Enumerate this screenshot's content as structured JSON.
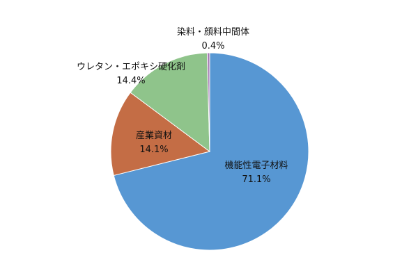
{
  "chart_data": {
    "type": "pie",
    "slices": [
      {
        "label": "機能性電子材料",
        "value": 71.1,
        "value_label": "71.1%",
        "color": "#5797d3"
      },
      {
        "label": "産業資材",
        "value": 14.1,
        "value_label": "14.1%",
        "color": "#c46d45"
      },
      {
        "label": "ウレタン・エポキシ硬化剤",
        "value": 14.4,
        "value_label": "14.4%",
        "color": "#8fc48b"
      },
      {
        "label": "染料・顔料中間体",
        "value": 0.4,
        "value_label": "0.4%",
        "color": "#a77ab3"
      }
    ],
    "start_angle_deg": 0,
    "direction": "clockwise",
    "legend": "none"
  }
}
